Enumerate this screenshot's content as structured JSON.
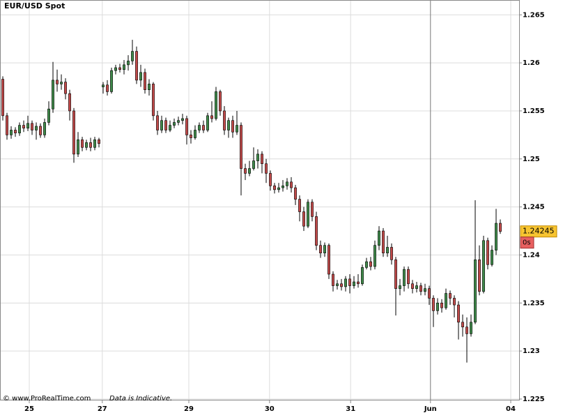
{
  "chart_data": {
    "type": "candlestick",
    "title": "EUR/USD Spot",
    "footer": {
      "copyright": "© www.ProRealTime.com",
      "note": "Data is Indicative."
    },
    "open": [
      1.2583,
      1.2545,
      1.2525,
      1.253,
      1.2527,
      1.2535,
      1.2532,
      1.2537,
      1.253,
      1.2534,
      1.2525,
      1.2538,
      1.2552,
      1.2582,
      1.2578,
      1.258,
      1.2568,
      1.255,
      1.2505,
      1.252,
      1.2512,
      1.2517,
      1.2512,
      1.252,
      1.2575,
      1.2577,
      1.257,
      1.2592,
      1.2595,
      1.2593,
      1.2598,
      1.2602,
      1.2612,
      1.2582,
      1.259,
      1.2572,
      1.2578,
      1.2545,
      1.253,
      1.254,
      1.253,
      1.2535,
      1.2538,
      1.254,
      1.2542,
      1.2525,
      1.2522,
      1.253,
      1.2535,
      1.253,
      1.2545,
      1.2542,
      1.257,
      1.255,
      1.253,
      1.254,
      1.2528,
      1.2535,
      1.249,
      1.2485,
      1.249,
      1.2498,
      1.2505,
      1.2495,
      1.2485,
      1.2472,
      1.2468,
      1.247,
      1.2472,
      1.2476,
      1.247,
      1.2458,
      1.2445,
      1.243,
      1.2455,
      1.244,
      1.241,
      1.2402,
      1.241,
      1.238,
      1.2368,
      1.237,
      1.2367,
      1.2375,
      1.2368,
      1.2372,
      1.237,
      1.2387,
      1.2393,
      1.2388,
      1.241,
      1.2425,
      1.2402,
      1.2408,
      1.2395,
      1.2365,
      1.2368,
      1.2385,
      1.237,
      1.2365,
      1.2368,
      1.2362,
      1.2365,
      1.2355,
      1.2342,
      1.235,
      1.2345,
      1.236,
      1.2355,
      1.2348,
      1.233,
      1.2325,
      1.2318,
      1.233,
      1.2395,
      1.2362,
      1.2415,
      1.239,
      1.2405,
      1.2433
    ],
    "high": [
      1.2586,
      1.2548,
      1.2534,
      1.2533,
      1.2538,
      1.254,
      1.2545,
      1.254,
      1.2538,
      1.2537,
      1.2542,
      1.256,
      1.2601,
      1.2593,
      1.2588,
      1.2584,
      1.2572,
      1.2553,
      1.2528,
      1.2523,
      1.252,
      1.2522,
      1.2523,
      1.2522,
      1.258,
      1.2582,
      1.2595,
      1.2598,
      1.2599,
      1.2603,
      1.2608,
      1.2624,
      1.2617,
      1.2598,
      1.2594,
      1.2583,
      1.258,
      1.255,
      1.2545,
      1.2543,
      1.254,
      1.2542,
      1.2544,
      1.2547,
      1.2545,
      1.253,
      1.2535,
      1.2538,
      1.254,
      1.2548,
      1.256,
      1.2575,
      1.2572,
      1.2555,
      1.2543,
      1.2545,
      1.255,
      1.2538,
      1.2495,
      1.2498,
      1.2512,
      1.251,
      1.2508,
      1.25,
      1.2488,
      1.2475,
      1.2475,
      1.2478,
      1.248,
      1.2481,
      1.2473,
      1.2462,
      1.245,
      1.2458,
      1.2458,
      1.2445,
      1.2415,
      1.2413,
      1.2412,
      1.2383,
      1.2374,
      1.2375,
      1.2378,
      1.238,
      1.2378,
      1.238,
      1.239,
      1.2397,
      1.2398,
      1.2415,
      1.243,
      1.2428,
      1.242,
      1.2412,
      1.2398,
      1.2375,
      1.2388,
      1.2388,
      1.2374,
      1.2372,
      1.2371,
      1.237,
      1.2368,
      1.2358,
      1.2355,
      1.2354,
      1.2365,
      1.2363,
      1.2358,
      1.2352,
      1.2338,
      1.2335,
      1.2338,
      1.2457,
      1.241,
      1.242,
      1.2418,
      1.241,
      1.2448,
      1.2437
    ],
    "low": [
      1.254,
      1.252,
      1.2521,
      1.2523,
      1.2524,
      1.2528,
      1.2529,
      1.2525,
      1.252,
      1.2522,
      1.2522,
      1.2535,
      1.2548,
      1.257,
      1.2572,
      1.2562,
      1.254,
      1.2496,
      1.2502,
      1.2508,
      1.2509,
      1.2508,
      1.2509,
      1.2512,
      1.2568,
      1.2566,
      1.2568,
      1.2588,
      1.259,
      1.2588,
      1.2592,
      1.2598,
      1.2578,
      1.2575,
      1.2568,
      1.2566,
      1.254,
      1.2525,
      1.2527,
      1.2527,
      1.2528,
      1.2532,
      1.2535,
      1.2536,
      1.2515,
      1.2516,
      1.252,
      1.2527,
      1.2527,
      1.2528,
      1.2538,
      1.254,
      1.2545,
      1.2525,
      1.2522,
      1.2522,
      1.2525,
      1.2462,
      1.2478,
      1.2482,
      1.2488,
      1.249,
      1.2485,
      1.2475,
      1.2467,
      1.2464,
      1.2465,
      1.2466,
      1.2468,
      1.2465,
      1.2452,
      1.2435,
      1.2425,
      1.2428,
      1.2435,
      1.2405,
      1.2397,
      1.2398,
      1.2375,
      1.2362,
      1.2364,
      1.2363,
      1.2362,
      1.236,
      1.2365,
      1.2366,
      1.2368,
      1.2385,
      1.2384,
      1.2385,
      1.2405,
      1.2398,
      1.2398,
      1.239,
      1.2337,
      1.2358,
      1.2362,
      1.2365,
      1.236,
      1.2361,
      1.2358,
      1.2358,
      1.2348,
      1.2325,
      1.2338,
      1.234,
      1.2343,
      1.2348,
      1.2335,
      1.2312,
      1.2315,
      1.2288,
      1.2315,
      1.2328,
      1.2358,
      1.236,
      1.2385,
      1.2388,
      1.24,
      1.2422
    ],
    "close": [
      1.2545,
      1.2525,
      1.253,
      1.2527,
      1.2535,
      1.2532,
      1.2537,
      1.253,
      1.2534,
      1.2525,
      1.2538,
      1.2552,
      1.2582,
      1.2578,
      1.258,
      1.2568,
      1.255,
      1.2505,
      1.252,
      1.2512,
      1.2517,
      1.2512,
      1.252,
      1.2516,
      1.2577,
      1.257,
      1.2592,
      1.2595,
      1.2593,
      1.2598,
      1.2602,
      1.2612,
      1.2582,
      1.259,
      1.2572,
      1.2578,
      1.2545,
      1.253,
      1.254,
      1.253,
      1.2535,
      1.2538,
      1.254,
      1.2542,
      1.2525,
      1.2522,
      1.253,
      1.2535,
      1.253,
      1.2545,
      1.2542,
      1.257,
      1.255,
      1.253,
      1.254,
      1.2528,
      1.2535,
      1.249,
      1.2485,
      1.249,
      1.2498,
      1.2505,
      1.2495,
      1.2485,
      1.2472,
      1.2468,
      1.247,
      1.2472,
      1.2476,
      1.247,
      1.2458,
      1.2445,
      1.243,
      1.2455,
      1.244,
      1.241,
      1.2402,
      1.241,
      1.238,
      1.2368,
      1.237,
      1.2367,
      1.2375,
      1.2368,
      1.2372,
      1.237,
      1.2387,
      1.2393,
      1.2388,
      1.241,
      1.2425,
      1.2402,
      1.2408,
      1.2395,
      1.2365,
      1.2368,
      1.2385,
      1.237,
      1.2365,
      1.2368,
      1.2362,
      1.2365,
      1.2355,
      1.2342,
      1.235,
      1.2345,
      1.236,
      1.2355,
      1.2348,
      1.233,
      1.2325,
      1.2318,
      1.233,
      1.2395,
      1.2362,
      1.2415,
      1.239,
      1.2405,
      1.2433,
      1.24245
    ],
    "up_color": "#3f8a4a",
    "down_color": "#c24a4a",
    "last_price": 1.24245,
    "countdown": "0s",
    "ylim": [
      1.225,
      1.2664
    ],
    "yticks": [
      1.225,
      1.23,
      1.235,
      1.24,
      1.245,
      1.25,
      1.255,
      1.26,
      1.265
    ],
    "xlim": [
      -0.67,
      123.5
    ],
    "xticks": [
      {
        "value": 6.33,
        "label": "25"
      },
      {
        "value": 23.8,
        "label": "27"
      },
      {
        "value": 44.5,
        "label": "29"
      },
      {
        "value": 63.8,
        "label": "30"
      },
      {
        "value": 83.2,
        "label": "31"
      },
      {
        "value": 102.3,
        "label": "Jun"
      },
      {
        "value": 121.5,
        "label": "04"
      }
    ],
    "grid": true
  }
}
